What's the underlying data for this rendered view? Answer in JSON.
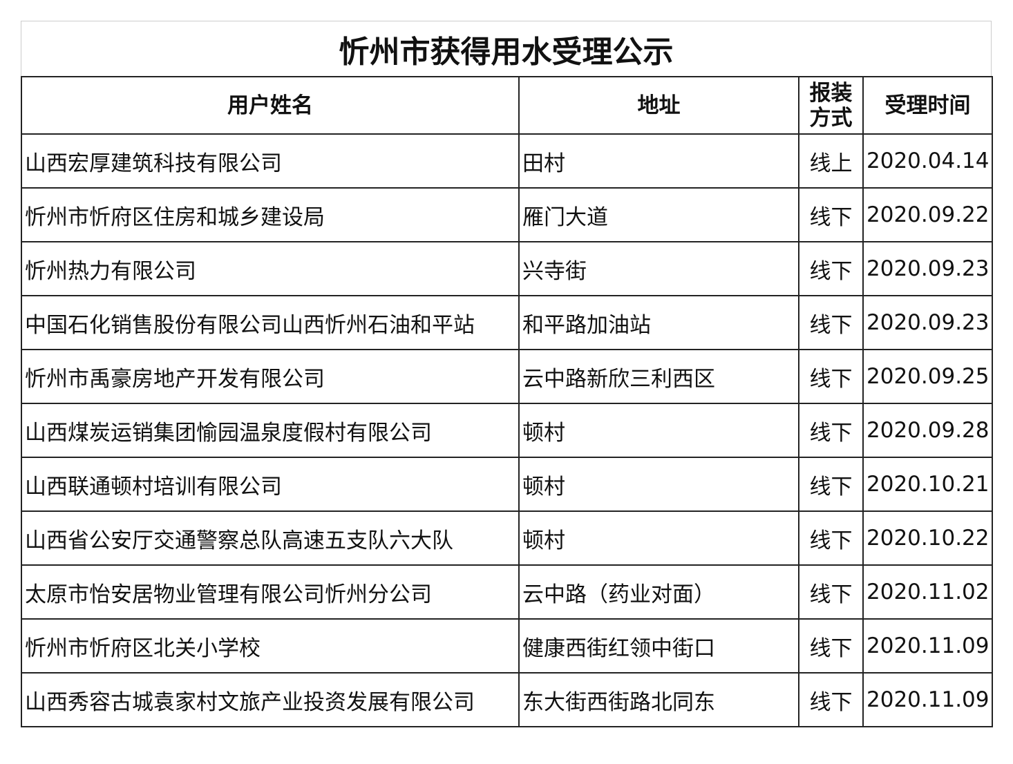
{
  "title": "忻州市获得用水受理公示",
  "headers": [
    "用户姓名",
    "地址",
    "报装方式",
    "受理时间"
  ],
  "rows": [
    {
      "name": "山西宏厚建筑科技有限公司",
      "address": "田村",
      "method": "线上",
      "date": "2020.04.14"
    },
    {
      "name": "忻州市忻府区住房和城乡建设局",
      "address": "雁门大道",
      "method": "线下",
      "date": "2020.09.22"
    },
    {
      "name": "忻州热力有限公司",
      "address": "兴寺街",
      "method": "线下",
      "date": "2020.09.23"
    },
    {
      "name": "中国石化销售股份有限公司山西忻州石油和平站",
      "address": "和平路加油站",
      "method": "线下",
      "date": "2020.09.23"
    },
    {
      "name": "忻州市禹豪房地产开发有限公司",
      "address": "云中路新欣三利西区",
      "method": "线下",
      "date": "2020.09.25"
    },
    {
      "name": "山西煤炭运销集团愉园温泉度假村有限公司",
      "address": "顿村",
      "method": "线下",
      "date": "2020.09.28"
    },
    {
      "name": "山西联通顿村培训有限公司",
      "address": "顿村",
      "method": "线下",
      "date": "2020.10.21"
    },
    {
      "name": "山西省公安厅交通警察总队高速五支队六大队",
      "address": "顿村",
      "method": "线下",
      "date": "2020.10.22"
    },
    {
      "name": "太原市怡安居物业管理有限公司忻州分公司",
      "address": "云中路（药业对面）",
      "method": "线下",
      "date": "2020.11.02"
    },
    {
      "name": "忻州市忻府区北关小学校",
      "address": "健康西街红领中街口",
      "method": "线下",
      "date": "2020.11.09"
    },
    {
      "name": "山西秀容古城袁家村文旅产业投资发展有限公司",
      "address": "东大街西街路北同东",
      "method": "线下",
      "date": "2020.11.09"
    }
  ]
}
